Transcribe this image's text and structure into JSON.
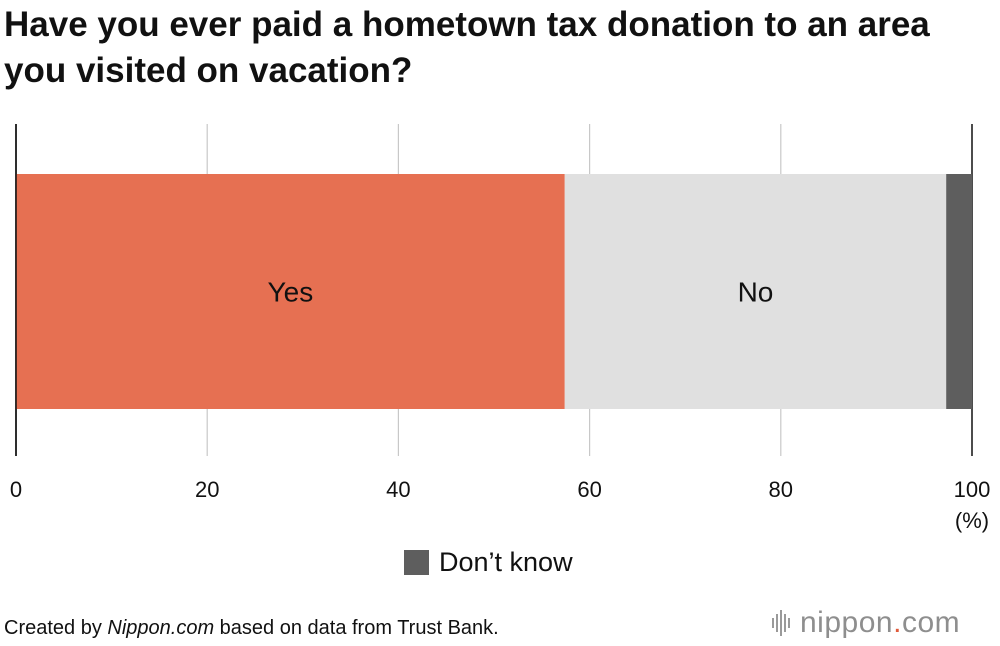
{
  "title": "Have you ever paid a hometown tax donation to an area you visited on vacation?",
  "caption": {
    "prefix": "Created by ",
    "source_name": "Nippon.com",
    "suffix": " based on data from Trust Bank."
  },
  "logo": {
    "name": "nippon",
    "dot": ".",
    "tld": "com"
  },
  "colors": {
    "yes": "#e67052",
    "no": "#e0e0e0",
    "dont_know": "#5e5e5e"
  },
  "chart_data": {
    "type": "bar",
    "orientation": "horizontal-stacked-100",
    "title": "Have you ever paid a hometown tax donation to an area you visited on vacation?",
    "xlabel": "(%)",
    "xlim": [
      0,
      100
    ],
    "xticks": [
      0,
      20,
      40,
      60,
      80,
      100
    ],
    "grid": true,
    "legend": "bottom-center",
    "series": [
      {
        "name": "Yes",
        "value": 57.4,
        "color": "#e67052",
        "label_inside": true
      },
      {
        "name": "No",
        "value": 39.9,
        "color": "#e0e0e0",
        "label_inside": true
      },
      {
        "name": "Don’t know",
        "value": 2.7,
        "color": "#5e5e5e",
        "label_inside": false,
        "in_legend": true
      }
    ]
  }
}
